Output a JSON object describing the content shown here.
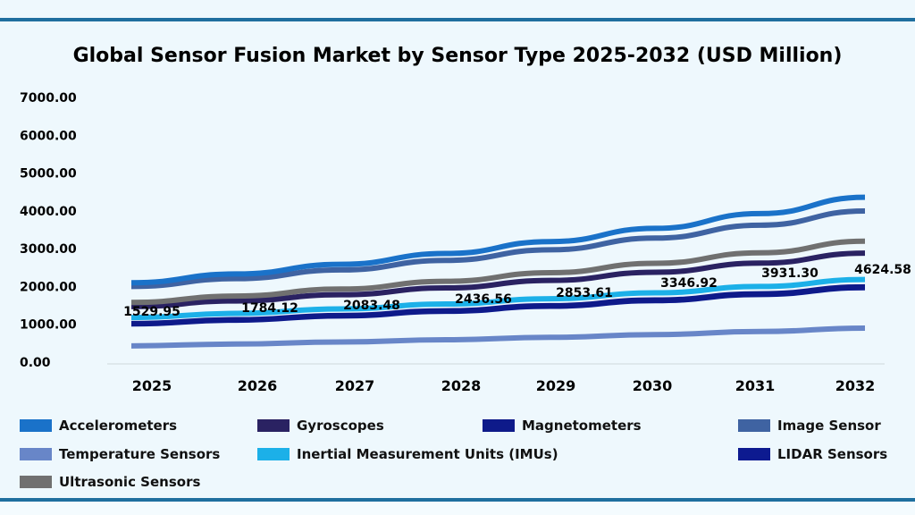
{
  "chart_data": {
    "type": "line",
    "title": "Global Sensor Fusion Market by Sensor Type 2025-2032 (USD Million)",
    "xlabel": "",
    "ylabel": "",
    "x": [
      "2025",
      "2026",
      "2027",
      "2028",
      "2029",
      "2030",
      "2031",
      "2032"
    ],
    "ylim": [
      0,
      7000
    ],
    "yticks": [
      "0.00",
      "1000.00",
      "2000.00",
      "3000.00",
      "4000.00",
      "5000.00",
      "6000.00",
      "7000.00"
    ],
    "grid": false,
    "legend_position": "bottom",
    "series": [
      {
        "name": "Accelerometers",
        "color": "#1a72c9",
        "values": [
          2100,
          2331,
          2587,
          2872,
          3188,
          3538,
          3928,
          4360
        ]
      },
      {
        "name": "Gyroscopes",
        "color": "#2a2262",
        "values": [
          1470,
          1618,
          1782,
          1962,
          2160,
          2378,
          2618,
          2883
        ]
      },
      {
        "name": "Magnetometers",
        "color": "#0e1a8a",
        "values": [
          1020,
          1122,
          1234,
          1358,
          1493,
          1643,
          1807,
          1988
        ]
      },
      {
        "name": "Image Sensor",
        "color": "#3f63a2",
        "values": [
          2000,
          2208,
          2438,
          2691,
          2971,
          3280,
          3621,
          3998
        ]
      },
      {
        "name": "Temperature Sensors",
        "color": "#6886c8",
        "values": [
          430,
          478,
          531,
          590,
          655,
          728,
          809,
          899
        ]
      },
      {
        "name": "Inertial Measurement Units (IMUs)",
        "color": "#1cb0e8",
        "values": [
          1180,
          1288,
          1407,
          1536,
          1677,
          1832,
          2000,
          2184
        ]
      },
      {
        "name": "LIDAR Sensors",
        "color": "#0d1a90",
        "values": [
          1010,
          1110,
          1222,
          1344,
          1478,
          1626,
          1789,
          1968
        ]
      },
      {
        "name": "Ultrasonic Sensors",
        "color": "#707070",
        "values": [
          1580,
          1747,
          1932,
          2137,
          2364,
          2614,
          2891,
          3198
        ]
      }
    ],
    "annotations": [
      "1529.95",
      "1784.12",
      "2083.48",
      "2436.56",
      "2853.61",
      "3346.92",
      "3931.30",
      "4624.58"
    ]
  }
}
